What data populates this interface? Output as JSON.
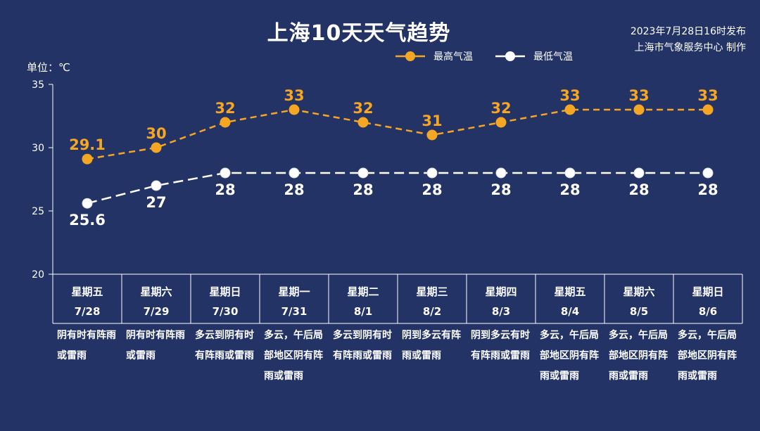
{
  "header": {
    "title": "上海10天天气趋势",
    "publish_line1": "2023年7月28日16时发布",
    "publish_line2": "上海市气象服务中心 制作",
    "unit": "单位：℃"
  },
  "colors": {
    "background": "#233366",
    "high": "#f5a623",
    "low": "#ffffff"
  },
  "chart_data": {
    "type": "line",
    "categories": [
      "7/28",
      "7/29",
      "7/30",
      "7/31",
      "8/1",
      "8/2",
      "8/3",
      "8/4",
      "8/5",
      "8/6"
    ],
    "weekdays": [
      "星期五",
      "星期六",
      "星期日",
      "星期一",
      "星期二",
      "星期三",
      "星期四",
      "星期五",
      "星期六",
      "星期日"
    ],
    "series": [
      {
        "name": "最高气温",
        "values": [
          29.1,
          30,
          32,
          33,
          32,
          31,
          32,
          33,
          33,
          33
        ],
        "labels": [
          "29.1",
          "30",
          "32",
          "33",
          "32",
          "31",
          "32",
          "33",
          "33",
          "33"
        ]
      },
      {
        "name": "最低气温",
        "values": [
          25.6,
          27,
          28,
          28,
          28,
          28,
          28,
          28,
          28,
          28
        ],
        "labels": [
          "25.6",
          "27",
          "28",
          "28",
          "28",
          "28",
          "28",
          "28",
          "28",
          "28"
        ]
      }
    ],
    "ylim": [
      20,
      35
    ],
    "yticks": [
      "20",
      "25",
      "30",
      "35"
    ],
    "legend_position": "top",
    "grid": false
  },
  "descriptions": [
    "阴有时有阵雨或雷雨",
    "阴有时有阵雨或雷雨",
    "多云到阴有时有阵雨或雷雨",
    "多云，午后局部地区阴有阵雨或雷雨",
    "多云到阴有时有阵雨或雷雨",
    "阴到多云有阵雨或雷雨",
    "阴到多云有时有阵雨或雷雨",
    "多云，午后局部地区阴有阵雨或雷雨",
    "多云，午后局部地区阴有阵雨或雷雨",
    "多云，午后局部地区阴有阵雨或雷雨"
  ]
}
